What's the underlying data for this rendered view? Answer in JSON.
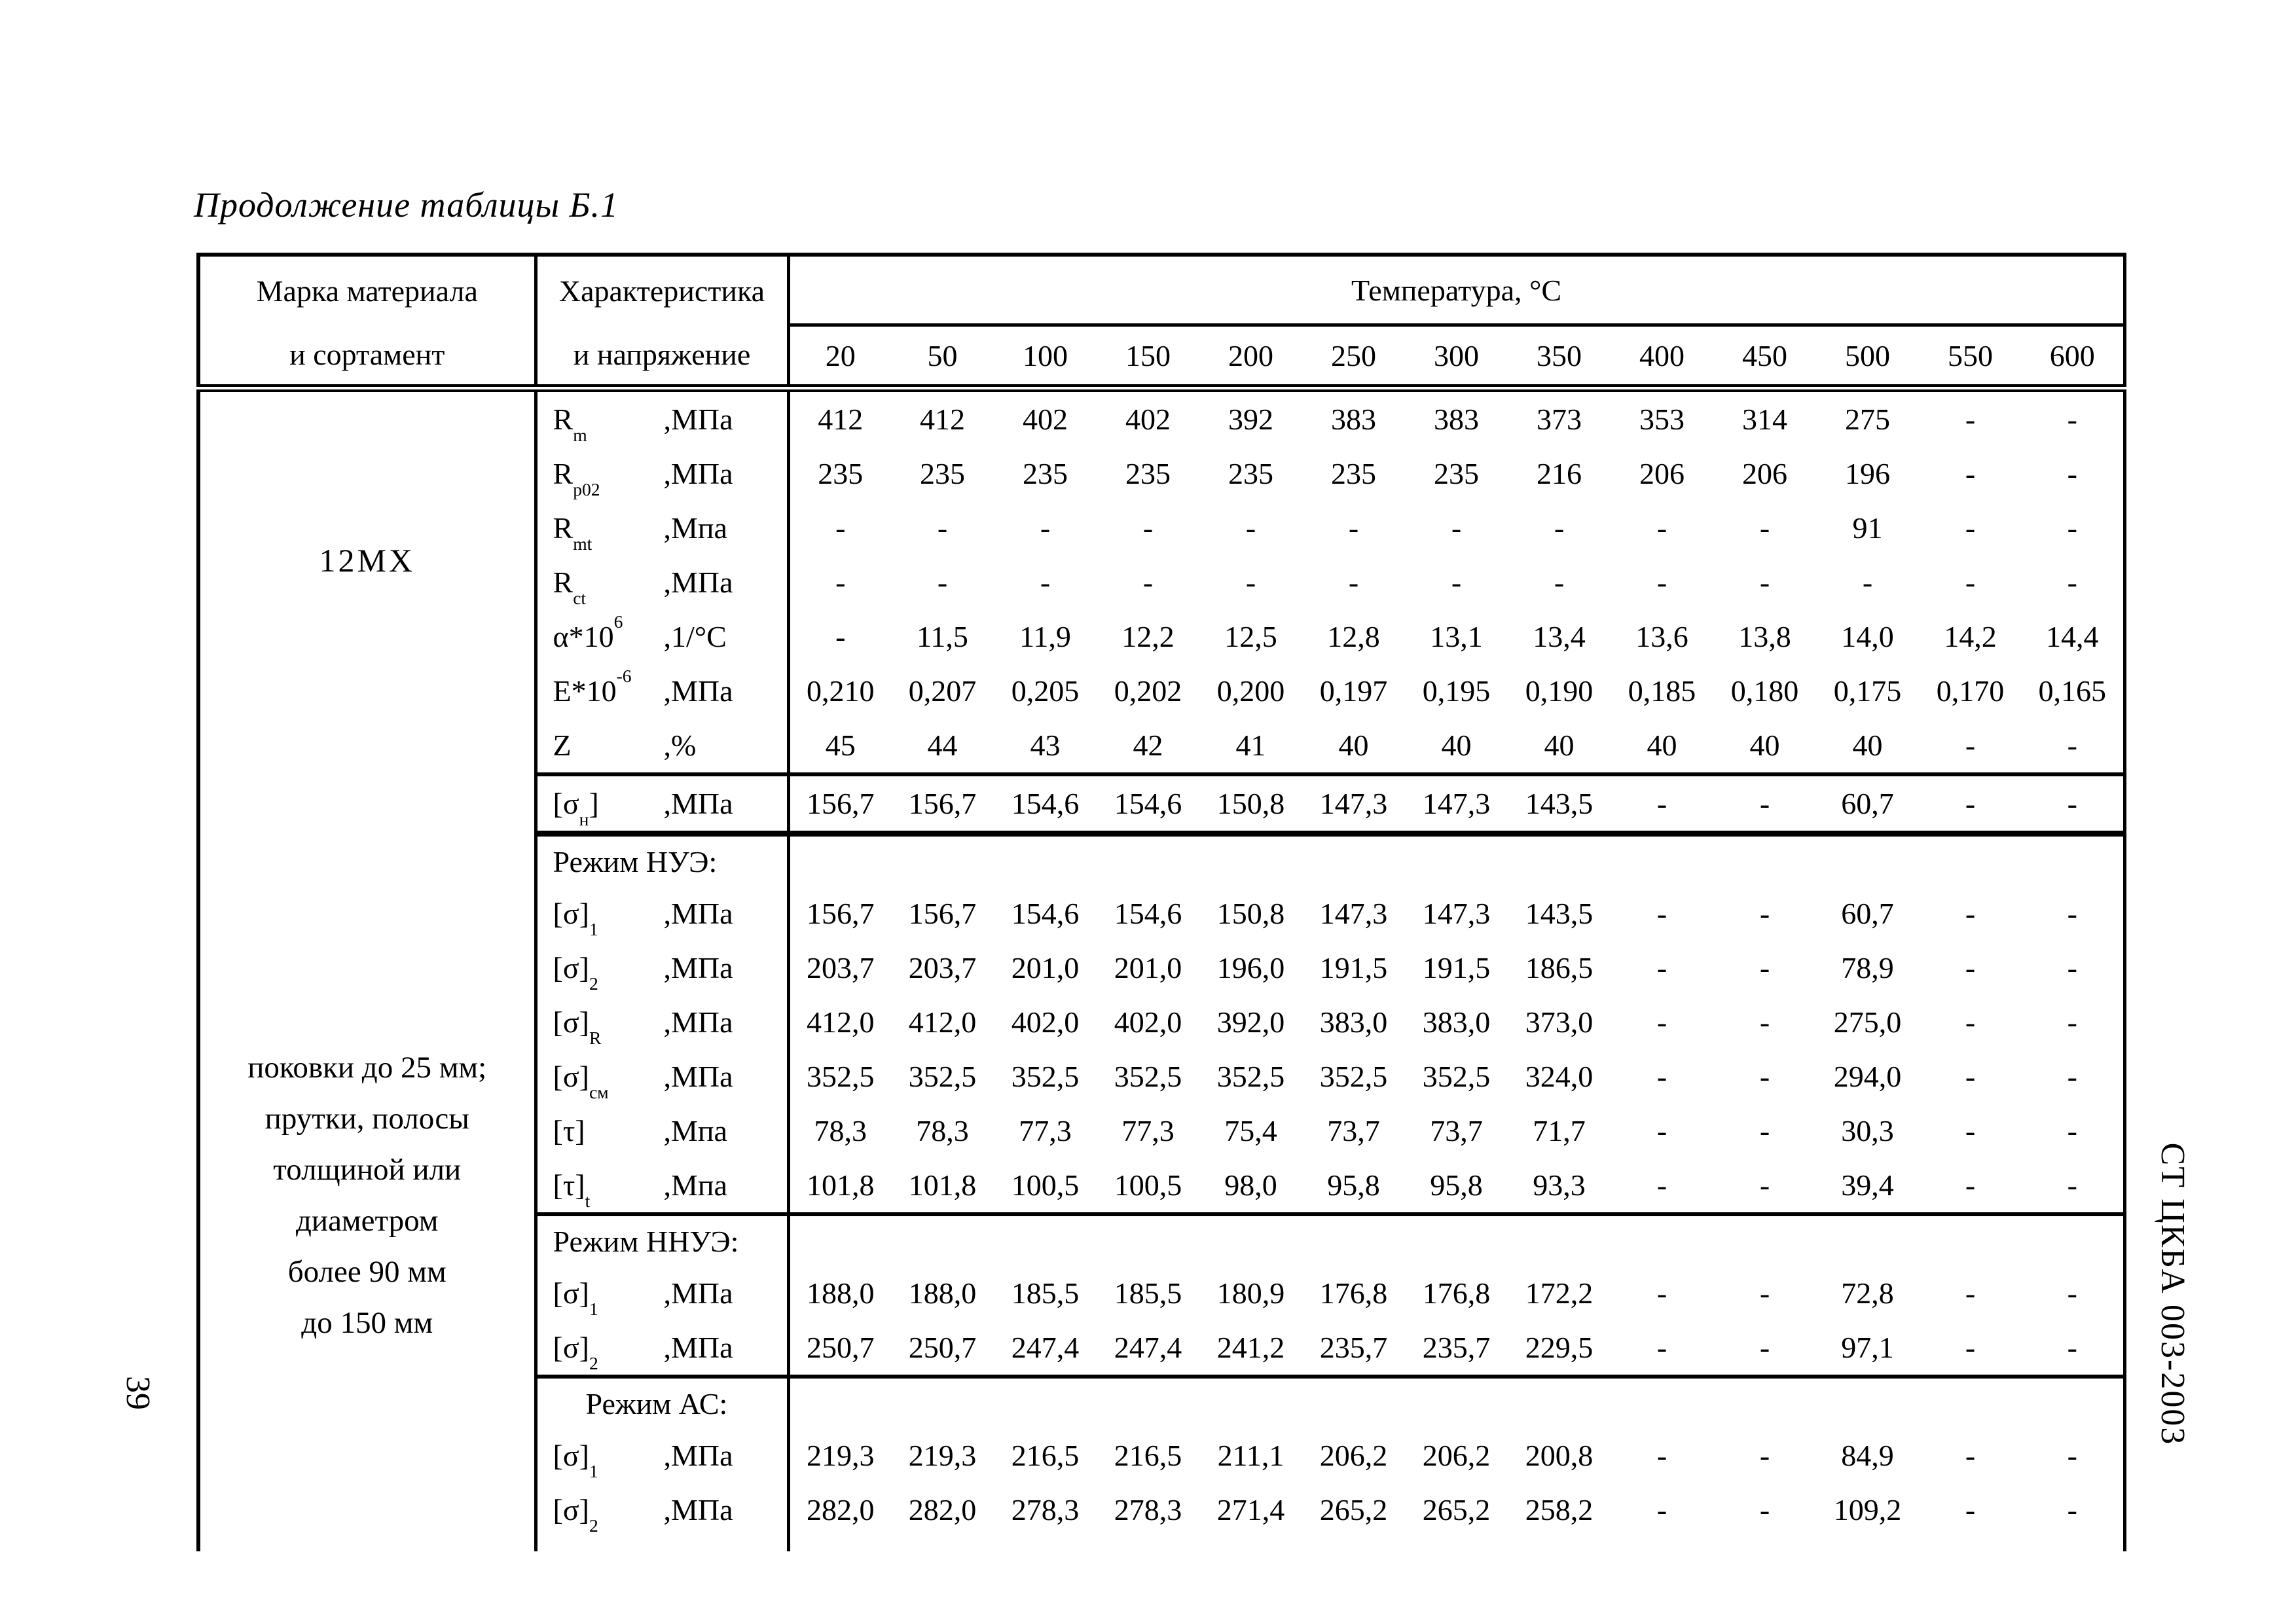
{
  "page": {
    "title": "Продолжение таблицы Б.1",
    "page_number": "39",
    "doc_code": "СТ ЦКБА 003-2003"
  },
  "table": {
    "header": {
      "col1_line1": "Марка материала",
      "col1_line2": "и сортамент",
      "col2_line1": "Характеристика",
      "col2_line2": "и напряжение",
      "temp_title": "Температура, °С",
      "temps": [
        "20",
        "50",
        "100",
        "150",
        "200",
        "250",
        "300",
        "350",
        "400",
        "450",
        "500",
        "550",
        "600"
      ]
    },
    "material": {
      "grade": "12МХ",
      "sortament_lines": [
        "поковки до 25 мм;",
        "прутки, полосы",
        "толщиной или",
        "диаметром",
        "более 90 мм",
        "до 150 мм"
      ]
    },
    "rows": [
      {
        "kind": "data",
        "label": [
          [
            "R",
            ""
          ],
          [
            "m",
            "sub"
          ]
        ],
        "unit": ",МПа",
        "values": [
          "412",
          "412",
          "402",
          "402",
          "392",
          "383",
          "383",
          "373",
          "353",
          "314",
          "275",
          "-",
          "-"
        ],
        "sep": ""
      },
      {
        "kind": "data",
        "label": [
          [
            "R",
            ""
          ],
          [
            "p02",
            "sub"
          ]
        ],
        "unit": ",МПа",
        "values": [
          "235",
          "235",
          "235",
          "235",
          "235",
          "235",
          "235",
          "216",
          "206",
          "206",
          "196",
          "-",
          "-"
        ],
        "sep": ""
      },
      {
        "kind": "data",
        "label": [
          [
            "R",
            ""
          ],
          [
            "mt",
            "sub"
          ]
        ],
        "unit": ",Мпа",
        "values": [
          "-",
          "-",
          "-",
          "-",
          "-",
          "-",
          "-",
          "-",
          "-",
          "-",
          "91",
          "-",
          "-"
        ],
        "sep": ""
      },
      {
        "kind": "data",
        "label": [
          [
            "R",
            ""
          ],
          [
            "ct",
            "sub"
          ]
        ],
        "unit": ",МПа",
        "values": [
          "-",
          "-",
          "-",
          "-",
          "-",
          "-",
          "-",
          "-",
          "-",
          "-",
          "-",
          "-",
          "-"
        ],
        "sep": ""
      },
      {
        "kind": "data",
        "label": [
          [
            "α*10",
            ""
          ],
          [
            "6",
            "sup"
          ]
        ],
        "unit": ",1/°С",
        "values": [
          "-",
          "11,5",
          "11,9",
          "12,2",
          "12,5",
          "12,8",
          "13,1",
          "13,4",
          "13,6",
          "13,8",
          "14,0",
          "14,2",
          "14,4"
        ],
        "sep": ""
      },
      {
        "kind": "data",
        "label": [
          [
            "E*10",
            ""
          ],
          [
            "-6",
            "sup"
          ]
        ],
        "unit": ",МПа",
        "values": [
          "0,210",
          "0,207",
          "0,205",
          "0,202",
          "0,200",
          "0,197",
          "0,195",
          "0,190",
          "0,185",
          "0,180",
          "0,175",
          "0,170",
          "0,165"
        ],
        "sep": ""
      },
      {
        "kind": "data",
        "label": [
          [
            "Z",
            ""
          ]
        ],
        "unit": ",%",
        "values": [
          "45",
          "44",
          "43",
          "42",
          "41",
          "40",
          "40",
          "40",
          "40",
          "40",
          "40",
          "-",
          "-"
        ],
        "sep": "thin"
      },
      {
        "kind": "data",
        "label": [
          [
            "[σ",
            ""
          ],
          [
            "н",
            "sub"
          ],
          [
            "]",
            ""
          ]
        ],
        "unit": ",МПа",
        "values": [
          "156,7",
          "156,7",
          "154,6",
          "154,6",
          "150,8",
          "147,3",
          "147,3",
          "143,5",
          "-",
          "-",
          "60,7",
          "-",
          "-"
        ],
        "sep": "thick"
      },
      {
        "kind": "section",
        "label": "Режим НУЭ:",
        "indent": false
      },
      {
        "kind": "data",
        "label": [
          [
            "[σ]",
            ""
          ],
          [
            "1",
            "sub"
          ]
        ],
        "unit": ",МПа",
        "values": [
          "156,7",
          "156,7",
          "154,6",
          "154,6",
          "150,8",
          "147,3",
          "147,3",
          "143,5",
          "-",
          "-",
          "60,7",
          "-",
          "-"
        ],
        "sep": ""
      },
      {
        "kind": "data",
        "label": [
          [
            "[σ]",
            ""
          ],
          [
            "2",
            "sub"
          ]
        ],
        "unit": ",МПа",
        "values": [
          "203,7",
          "203,7",
          "201,0",
          "201,0",
          "196,0",
          "191,5",
          "191,5",
          "186,5",
          "-",
          "-",
          "78,9",
          "-",
          "-"
        ],
        "sep": ""
      },
      {
        "kind": "data",
        "label": [
          [
            "[σ]",
            ""
          ],
          [
            "R",
            "sub"
          ]
        ],
        "unit": ",МПа",
        "values": [
          "412,0",
          "412,0",
          "402,0",
          "402,0",
          "392,0",
          "383,0",
          "383,0",
          "373,0",
          "-",
          "-",
          "275,0",
          "-",
          "-"
        ],
        "sep": ""
      },
      {
        "kind": "data",
        "label": [
          [
            "[σ]",
            ""
          ],
          [
            "см",
            "sub"
          ]
        ],
        "unit": ",МПа",
        "values": [
          "352,5",
          "352,5",
          "352,5",
          "352,5",
          "352,5",
          "352,5",
          "352,5",
          "324,0",
          "-",
          "-",
          "294,0",
          "-",
          "-"
        ],
        "sep": ""
      },
      {
        "kind": "data",
        "label": [
          [
            "[τ]",
            ""
          ]
        ],
        "unit": ",Мпа",
        "values": [
          "78,3",
          "78,3",
          "77,3",
          "77,3",
          "75,4",
          "73,7",
          "73,7",
          "71,7",
          "-",
          "-",
          "30,3",
          "-",
          "-"
        ],
        "sep": ""
      },
      {
        "kind": "data",
        "label": [
          [
            "[τ]",
            ""
          ],
          [
            "t",
            "sub"
          ]
        ],
        "unit": ",Мпа",
        "values": [
          "101,8",
          "101,8",
          "100,5",
          "100,5",
          "98,0",
          "95,8",
          "95,8",
          "93,3",
          "-",
          "-",
          "39,4",
          "-",
          "-"
        ],
        "sep": "thin"
      },
      {
        "kind": "section",
        "label": "Режим ННУЭ:",
        "indent": false
      },
      {
        "kind": "data",
        "label": [
          [
            "[σ]",
            ""
          ],
          [
            "1",
            "sub"
          ]
        ],
        "unit": ",МПа",
        "values": [
          "188,0",
          "188,0",
          "185,5",
          "185,5",
          "180,9",
          "176,8",
          "176,8",
          "172,2",
          "-",
          "-",
          "72,8",
          "-",
          "-"
        ],
        "sep": ""
      },
      {
        "kind": "data",
        "label": [
          [
            "[σ]",
            ""
          ],
          [
            "2",
            "sub"
          ]
        ],
        "unit": ",МПа",
        "values": [
          "250,7",
          "250,7",
          "247,4",
          "247,4",
          "241,2",
          "235,7",
          "235,7",
          "229,5",
          "-",
          "-",
          "97,1",
          "-",
          "-"
        ],
        "sep": "thin"
      },
      {
        "kind": "section",
        "label": "Режим АС:",
        "indent": true
      },
      {
        "kind": "data",
        "label": [
          [
            "[σ]",
            ""
          ],
          [
            "1",
            "sub"
          ]
        ],
        "unit": ",МПа",
        "values": [
          "219,3",
          "219,3",
          "216,5",
          "216,5",
          "211,1",
          "206,2",
          "206,2",
          "200,8",
          "-",
          "-",
          "84,9",
          "-",
          "-"
        ],
        "sep": ""
      },
      {
        "kind": "data",
        "label": [
          [
            "[σ]",
            ""
          ],
          [
            "2",
            "sub"
          ]
        ],
        "unit": ",МПа",
        "values": [
          "282,0",
          "282,0",
          "278,3",
          "278,3",
          "271,4",
          "265,2",
          "265,2",
          "258,2",
          "-",
          "-",
          "109,2",
          "-",
          "-"
        ],
        "sep": ""
      }
    ]
  }
}
